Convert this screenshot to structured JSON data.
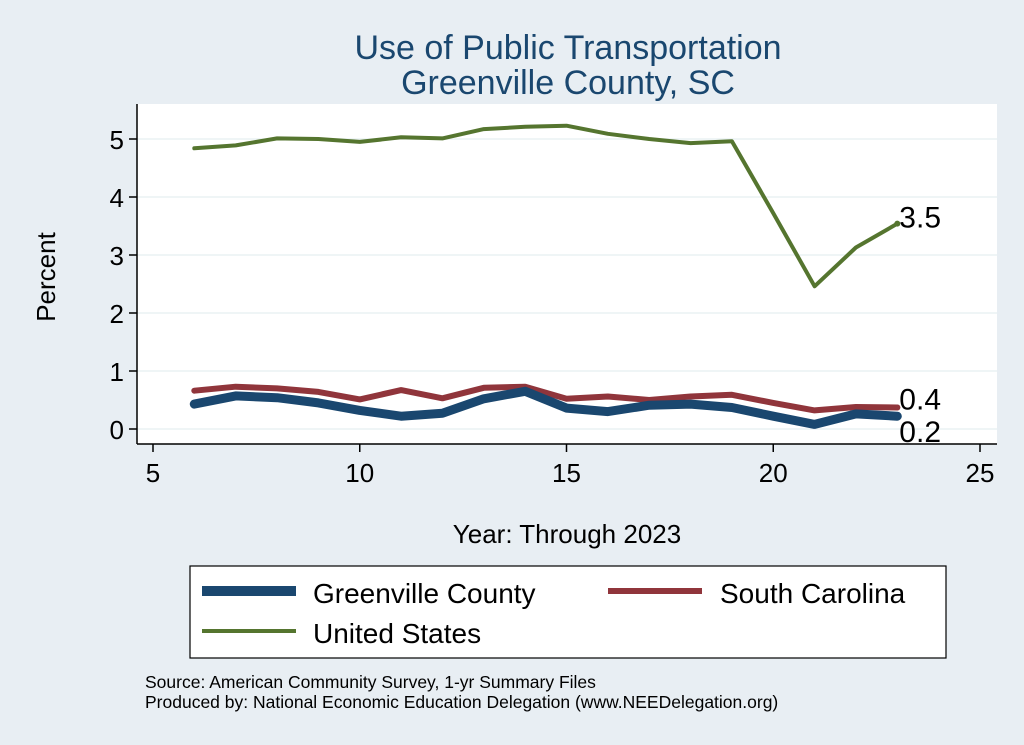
{
  "chart_data": {
    "type": "line",
    "title": [
      "Use of Public Transportation",
      "Greenville County, SC"
    ],
    "xlabel": "Year: Through 2023",
    "ylabel": "Percent",
    "xlim": [
      5,
      25
    ],
    "ylim": [
      0,
      5.5
    ],
    "xticks": [
      5,
      10,
      15,
      20,
      25
    ],
    "yticks": [
      0,
      1,
      2,
      3,
      4,
      5
    ],
    "grid": "horizontal",
    "legend_position": "bottom",
    "series": [
      {
        "name": "Greenville County",
        "color": "#1a476f",
        "x": [
          6,
          7,
          8,
          9,
          10,
          11,
          12,
          13,
          14,
          15,
          16,
          17,
          18,
          19,
          20,
          21,
          22,
          23
        ],
        "values": [
          0.43,
          0.57,
          0.54,
          0.45,
          0.32,
          0.22,
          0.27,
          0.52,
          0.65,
          0.36,
          0.3,
          0.41,
          0.43,
          0.37,
          0.22,
          0.08,
          0.26,
          0.22
        ],
        "end_label": "0.2"
      },
      {
        "name": "South Carolina",
        "color": "#90353b",
        "x": [
          6,
          7,
          8,
          9,
          10,
          11,
          12,
          13,
          14,
          15,
          16,
          17,
          18,
          19,
          20,
          21,
          22,
          23
        ],
        "values": [
          0.66,
          0.73,
          0.7,
          0.64,
          0.51,
          0.67,
          0.53,
          0.71,
          0.73,
          0.52,
          0.56,
          0.5,
          0.56,
          0.59,
          0.45,
          0.32,
          0.38,
          0.37
        ],
        "end_label": "0.4"
      },
      {
        "name": "United States",
        "color": "#55752f",
        "x": [
          6,
          7,
          8,
          9,
          10,
          11,
          12,
          13,
          14,
          15,
          16,
          17,
          18,
          19,
          20,
          21,
          22,
          23
        ],
        "values": [
          4.84,
          4.89,
          5.01,
          5.0,
          4.95,
          5.03,
          5.01,
          5.17,
          5.21,
          5.23,
          5.09,
          5.0,
          4.93,
          4.96,
          3.72,
          2.46,
          3.13,
          3.54
        ],
        "end_label": "3.5"
      }
    ]
  },
  "footer": {
    "source": "Source: American Community Survey, 1-yr Summary Files",
    "producer": "Produced by: National Economic Education Delegation (www.NEEDelegation.org)"
  }
}
